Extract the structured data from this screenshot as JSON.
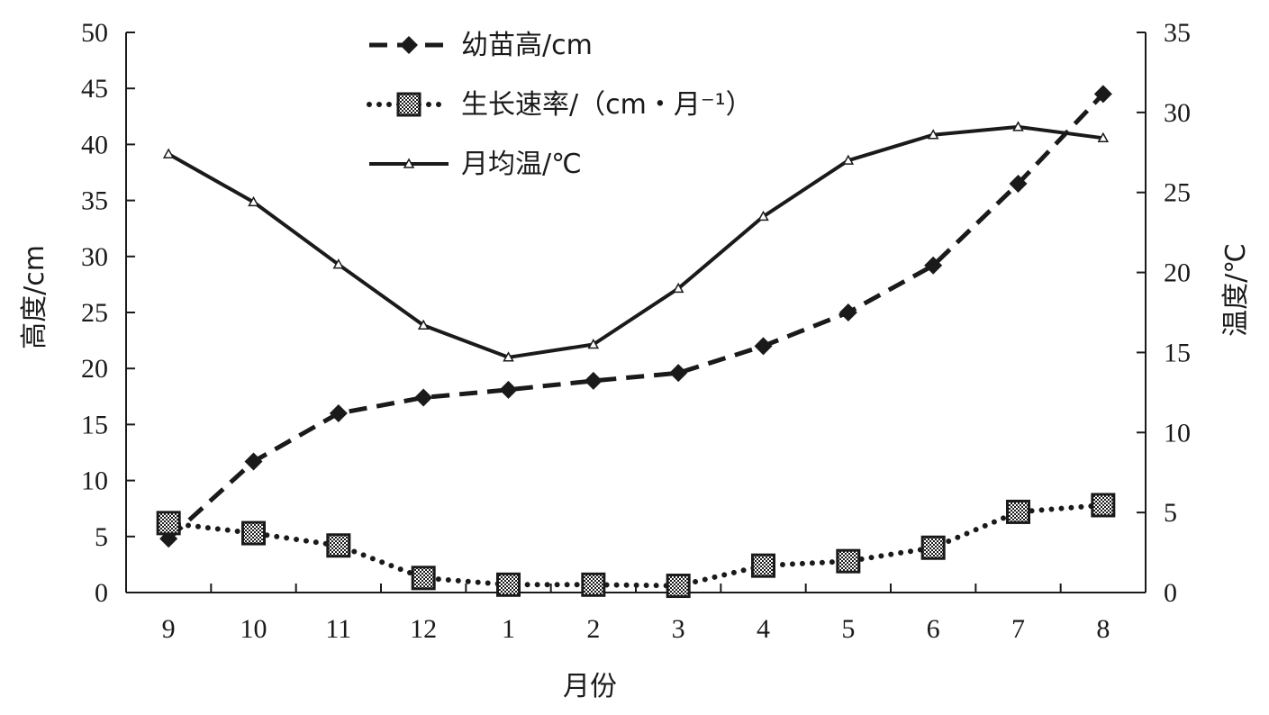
{
  "chart_data": {
    "type": "line",
    "categories": [
      "9",
      "10",
      "11",
      "12",
      "1",
      "2",
      "3",
      "4",
      "5",
      "6",
      "7",
      "8"
    ],
    "xlabel": "月份",
    "ylabel_left": "高度/cm",
    "ylabel_right": "温度/℃",
    "ylim_left": [
      0,
      50
    ],
    "ylim_right": [
      0,
      35
    ],
    "yticks_left": [
      "0",
      "5",
      "10",
      "15",
      "20",
      "25",
      "30",
      "35",
      "40",
      "45",
      "50"
    ],
    "yticks_right": [
      "0",
      "5",
      "10",
      "15",
      "20",
      "25",
      "30",
      "35"
    ],
    "grid": false,
    "legend_position": "top-center",
    "series": [
      {
        "name": "幼苗高/cm",
        "axis": "left",
        "style": "dashed",
        "marker": "diamond",
        "values": [
          4.8,
          11.7,
          16,
          17.4,
          18.1,
          18.9,
          19.6,
          22,
          25,
          29.2,
          36.5,
          44.5
        ]
      },
      {
        "name": "生长速率/（cm・月⁻¹）",
        "axis": "left",
        "style": "dotted",
        "marker": "hatched-square",
        "values": [
          6.2,
          5.3,
          4.2,
          1.3,
          0.7,
          0.7,
          0.6,
          2.4,
          2.8,
          4.0,
          7.2,
          7.8
        ]
      },
      {
        "name": "月均温/℃",
        "axis": "right",
        "style": "solid",
        "marker": "triangle",
        "values": [
          27.4,
          24.4,
          20.5,
          16.7,
          14.7,
          15.5,
          19,
          23.5,
          27,
          28.6,
          29.1,
          28.4
        ]
      }
    ]
  }
}
